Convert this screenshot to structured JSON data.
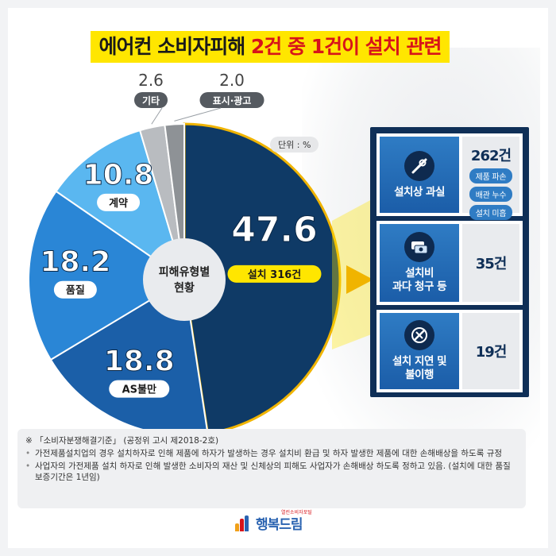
{
  "title": {
    "part1": "에어컨 소비자피해 ",
    "part2": "2건 중 1건이 설치 관련"
  },
  "unit_label": "단위 : %",
  "center_label": [
    "피해유형별",
    "현황"
  ],
  "chart_data": {
    "type": "pie",
    "title": "에어컨 소비자피해 2건 중 1건이 설치 관련",
    "unit": "%",
    "slices": [
      {
        "label": "설치",
        "value": 47.6,
        "count_text": "316건",
        "color": "#0f3a66"
      },
      {
        "label": "AS불만",
        "value": 18.8,
        "color": "#1b5fa8"
      },
      {
        "label": "품질",
        "value": 18.2,
        "color": "#2a86d6"
      },
      {
        "label": "계약",
        "value": 10.8,
        "color": "#5ab7f0"
      },
      {
        "label": "기타",
        "value": 2.6,
        "color": "#b9bcc0"
      },
      {
        "label": "표시·광고",
        "value": 2.0,
        "color": "#8e9296"
      }
    ]
  },
  "breakdown": [
    {
      "icon": "tools-icon",
      "label": [
        "설치상 과실"
      ],
      "count": "262건",
      "tags": [
        "제품 파손",
        "배관 누수",
        "설치 미흡"
      ]
    },
    {
      "icon": "money-icon",
      "label": [
        "설치비",
        "과다 청구 등"
      ],
      "count": "35건",
      "tags": []
    },
    {
      "icon": "wrench-cross-icon",
      "label": [
        "설치 지연 및",
        "불이행"
      ],
      "count": "19건",
      "tags": []
    }
  ],
  "notes": {
    "source": "※ 「소비자분쟁해결기준」 (공정위 고시 제2018-2호)",
    "items": [
      "가전제품설치업의 경우 설치하자로 인해 제품에 하자가 발생하는 경우 설치비 환급 및 하자 발생한 제품에 대한 손해배상을 하도록 규정",
      "사업자의 가전제품 설치 하자로 인해 발생한 소비자의 재산 및 신체상의 피해도 사업자가 손해배상 하도록 정하고 있음. (설치에 대한 품질보증기간은 1년임)"
    ]
  },
  "logo": {
    "word": "행복드림",
    "sub": "열린소비자포털"
  },
  "colors": {
    "accent_yellow": "#ffe600",
    "accent_red": "#d7141a",
    "navy": "#0f2f57"
  }
}
